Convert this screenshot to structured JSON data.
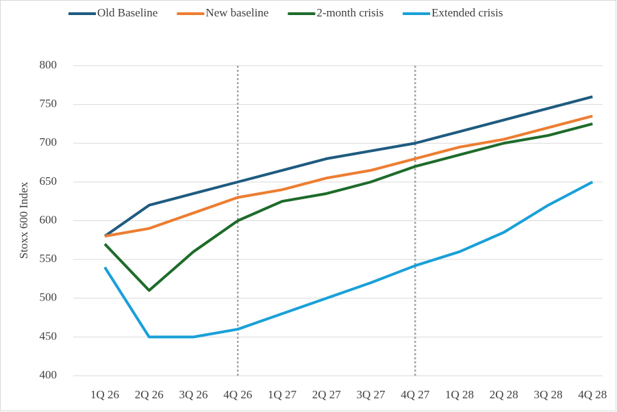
{
  "chart_data": {
    "type": "line",
    "y_label": "Stoxx 600 Index",
    "categories": [
      "1Q 26",
      "2Q 26",
      "3Q 26",
      "4Q 26",
      "1Q 27",
      "2Q 27",
      "3Q 27",
      "4Q 27",
      "1Q 28",
      "2Q 28",
      "3Q 28",
      "4Q 28"
    ],
    "series": [
      {
        "name": "Old Baseline",
        "color": "#1f5b80",
        "values": [
          580,
          620,
          635,
          650,
          665,
          680,
          690,
          700,
          715,
          730,
          745,
          760
        ]
      },
      {
        "name": "New baseline",
        "color": "#ed7d31",
        "values": [
          580,
          590,
          610,
          630,
          640,
          655,
          665,
          680,
          695,
          705,
          720,
          735
        ]
      },
      {
        "name": "2-month crisis",
        "color": "#1e6b2a",
        "values": [
          570,
          510,
          560,
          600,
          625,
          635,
          650,
          670,
          685,
          700,
          710,
          725
        ]
      },
      {
        "name": "Extended crisis",
        "color": "#1aa0d8",
        "values": [
          540,
          450,
          450,
          460,
          480,
          500,
          520,
          542,
          560,
          585,
          620,
          650
        ]
      }
    ],
    "vlines": [
      "4Q 26",
      "4Q 27"
    ],
    "ylim": [
      400,
      800
    ],
    "yticks": [
      400,
      450,
      500,
      550,
      600,
      650,
      700,
      750,
      800
    ],
    "grid": true,
    "legend": "top"
  }
}
